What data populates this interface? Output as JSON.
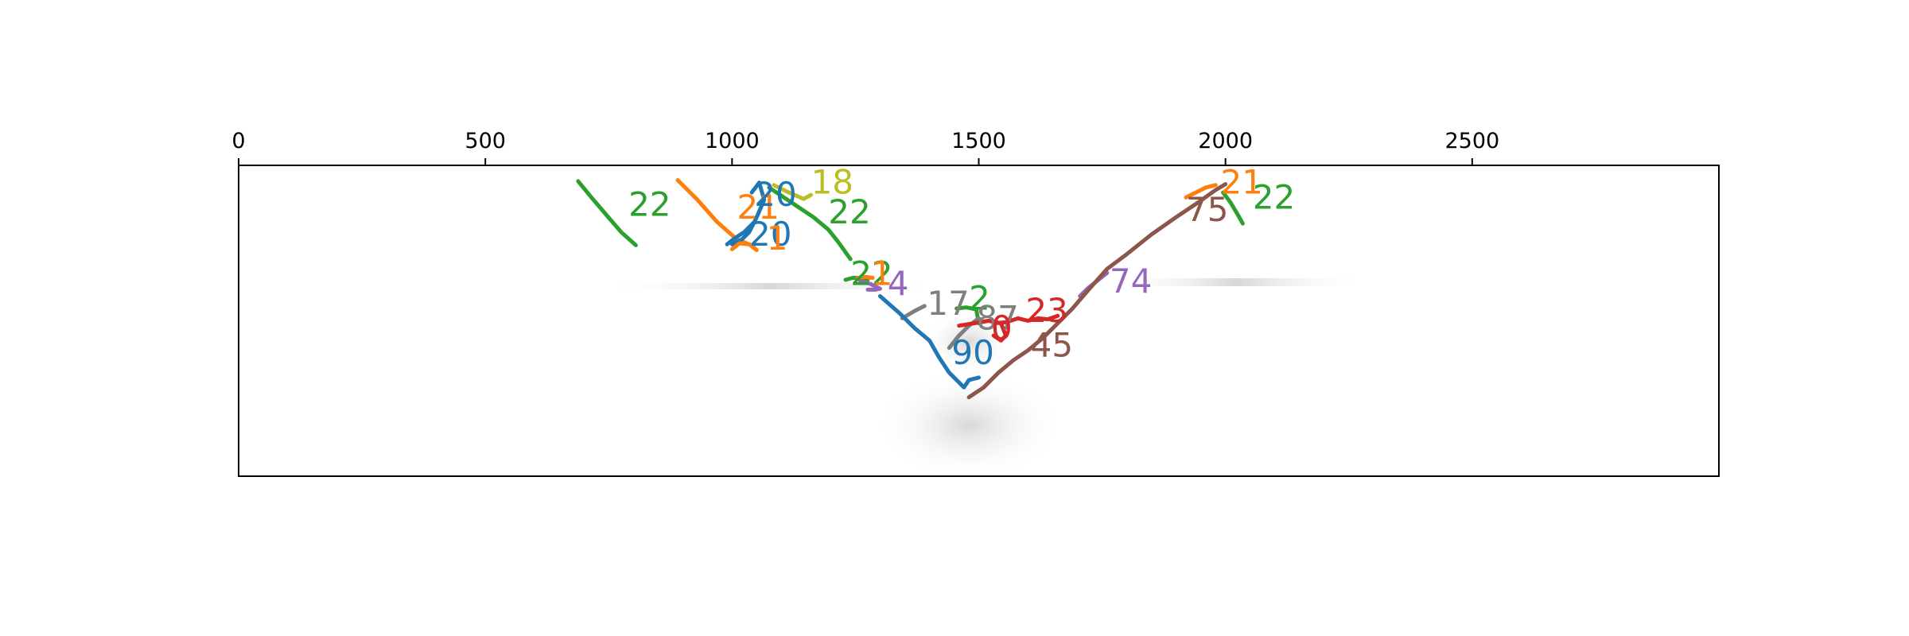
{
  "chart_data": {
    "type": "line",
    "title": "",
    "xlabel": "",
    "ylabel": "",
    "x_axis_position": "top",
    "xlim": [
      0,
      3000
    ],
    "ylim": [
      630,
      0
    ],
    "xticks": [
      0,
      500,
      1000,
      1500,
      2000,
      2500
    ],
    "xtick_labels": [
      "0",
      "500",
      "1000",
      "1500",
      "2000",
      "2500"
    ],
    "grid": false,
    "legend": "none",
    "background": "grayscale event image",
    "series": [
      {
        "label": "22",
        "color": "#2ca02c",
        "label_at": [
          790,
          80
        ],
        "x": [
          688,
          715,
          745,
          775,
          805
        ],
        "y": [
          32,
          65,
          100,
          135,
          162
        ]
      },
      {
        "label": "21",
        "color": "#ff7f0e",
        "label_at": [
          1010,
          85
        ],
        "x": [
          890,
          930,
          970,
          1010,
          1030
        ],
        "y": [
          30,
          70,
          115,
          150,
          158
        ]
      },
      {
        "label": "20",
        "color": "#1f77b4",
        "label_at": [
          1045,
          60
        ],
        "x": [
          1040,
          1055,
          1065,
          1050,
          1035,
          1020,
          1000
        ],
        "y": [
          55,
          35,
          70,
          105,
          135,
          150,
          160
        ]
      },
      {
        "label": "20",
        "color": "#1f77b4",
        "label_at": [
          1035,
          140
        ],
        "x": [
          1045,
          1025,
          1005,
          990
        ],
        "y": [
          115,
          135,
          148,
          160
        ]
      },
      {
        "label": "1",
        "color": "#ff7f0e",
        "label_at": [
          1070,
          148
        ],
        "x": [
          1000,
          1015,
          1035,
          1050,
          1040
        ],
        "y": [
          170,
          158,
          160,
          172,
          162
        ]
      },
      {
        "label": "18",
        "color": "#bcbd22",
        "label_at": [
          1160,
          35
        ],
        "x": [
          1085,
          1115,
          1145,
          1160
        ],
        "y": [
          40,
          55,
          68,
          60
        ]
      },
      {
        "label": "22",
        "color": "#2ca02c",
        "label_at": [
          1195,
          95
        ],
        "x": [
          1075,
          1120,
          1165,
          1195,
          1215,
          1240
        ],
        "y": [
          45,
          75,
          105,
          130,
          155,
          190
        ]
      },
      {
        "label": "22",
        "color": "#2ca02c",
        "label_at": [
          1240,
          220
        ],
        "x": [
          1230,
          1245,
          1260,
          1275
        ],
        "y": [
          232,
          228,
          228,
          232
        ]
      },
      {
        "label": "1",
        "color": "#ff7f0e",
        "label_at": [
          1282,
          220
        ],
        "x": [
          1255,
          1270,
          1285
        ],
        "y": [
          228,
          226,
          228
        ]
      },
      {
        "label": "4",
        "color": "#9467bd",
        "label_at": [
          1315,
          240
        ],
        "x": [
          1260,
          1280,
          1300,
          1290,
          1275
        ],
        "y": [
          235,
          240,
          250,
          252,
          252
        ]
      },
      {
        "label": "17",
        "color": "#7f7f7f",
        "label_at": [
          1395,
          280
        ],
        "x": [
          1345,
          1370,
          1390
        ],
        "y": [
          310,
          295,
          285
        ]
      },
      {
        "label": "90",
        "color": "#1f77b4",
        "label_at": [
          1445,
          380
        ],
        "x": [
          1300,
          1340,
          1370,
          1400,
          1420,
          1440,
          1460,
          1470,
          1480,
          1500
        ],
        "y": [
          265,
          300,
          330,
          355,
          390,
          420,
          440,
          450,
          435,
          430
        ]
      },
      {
        "label": "2",
        "color": "#2ca02c",
        "label_at": [
          1480,
          270
        ],
        "x": [
          1455,
          1475,
          1495,
          1500
        ],
        "y": [
          290,
          288,
          292,
          320
        ]
      },
      {
        "label": "87",
        "color": "#7f7f7f",
        "label_at": [
          1495,
          310
        ],
        "x": [
          1440,
          1460,
          1480,
          1500
        ],
        "y": [
          370,
          345,
          325,
          310
        ]
      },
      {
        "label": "0",
        "color": "#d62728",
        "label_at": [
          1525,
          330
        ],
        "x": [
          1460,
          1490,
          1520,
          1545,
          1555,
          1545,
          1530
        ],
        "y": [
          325,
          320,
          315,
          320,
          345,
          355,
          345
        ]
      },
      {
        "label": "23",
        "color": "#d62728",
        "label_at": [
          1595,
          295
        ],
        "x": [
          1530,
          1555,
          1580,
          1600,
          1620,
          1640,
          1660
        ],
        "y": [
          320,
          318,
          310,
          315,
          310,
          312,
          305
        ]
      },
      {
        "label": "45",
        "color": "#8c564b",
        "label_at": [
          1605,
          365
        ],
        "x": [
          1480,
          1510,
          1540,
          1570,
          1600,
          1630,
          1660,
          1690
        ],
        "y": [
          470,
          450,
          420,
          395,
          375,
          350,
          320,
          290
        ]
      },
      {
        "label": "74",
        "color": "#9467bd",
        "label_at": [
          1765,
          235
        ],
        "x": [
          1705,
          1720,
          1745,
          1760
        ],
        "y": [
          265,
          250,
          230,
          218
        ]
      },
      {
        "label": "75",
        "color": "#8c564b",
        "label_at": [
          1920,
          90
        ],
        "x": [
          1690,
          1720,
          1760,
          1800,
          1850,
          1900,
          1945,
          1980,
          2000
        ],
        "y": [
          290,
          255,
          210,
          180,
          140,
          105,
          75,
          50,
          38
        ]
      },
      {
        "label": "21",
        "color": "#ff7f0e",
        "label_at": [
          1990,
          35
        ],
        "x": [
          1920,
          1940,
          1960,
          1980
        ],
        "y": [
          65,
          55,
          45,
          40
        ]
      },
      {
        "label": "22",
        "color": "#2ca02c",
        "label_at": [
          2055,
          65
        ],
        "x": [
          1995,
          2010,
          2025,
          2035
        ],
        "y": [
          55,
          75,
          100,
          118
        ]
      }
    ]
  }
}
